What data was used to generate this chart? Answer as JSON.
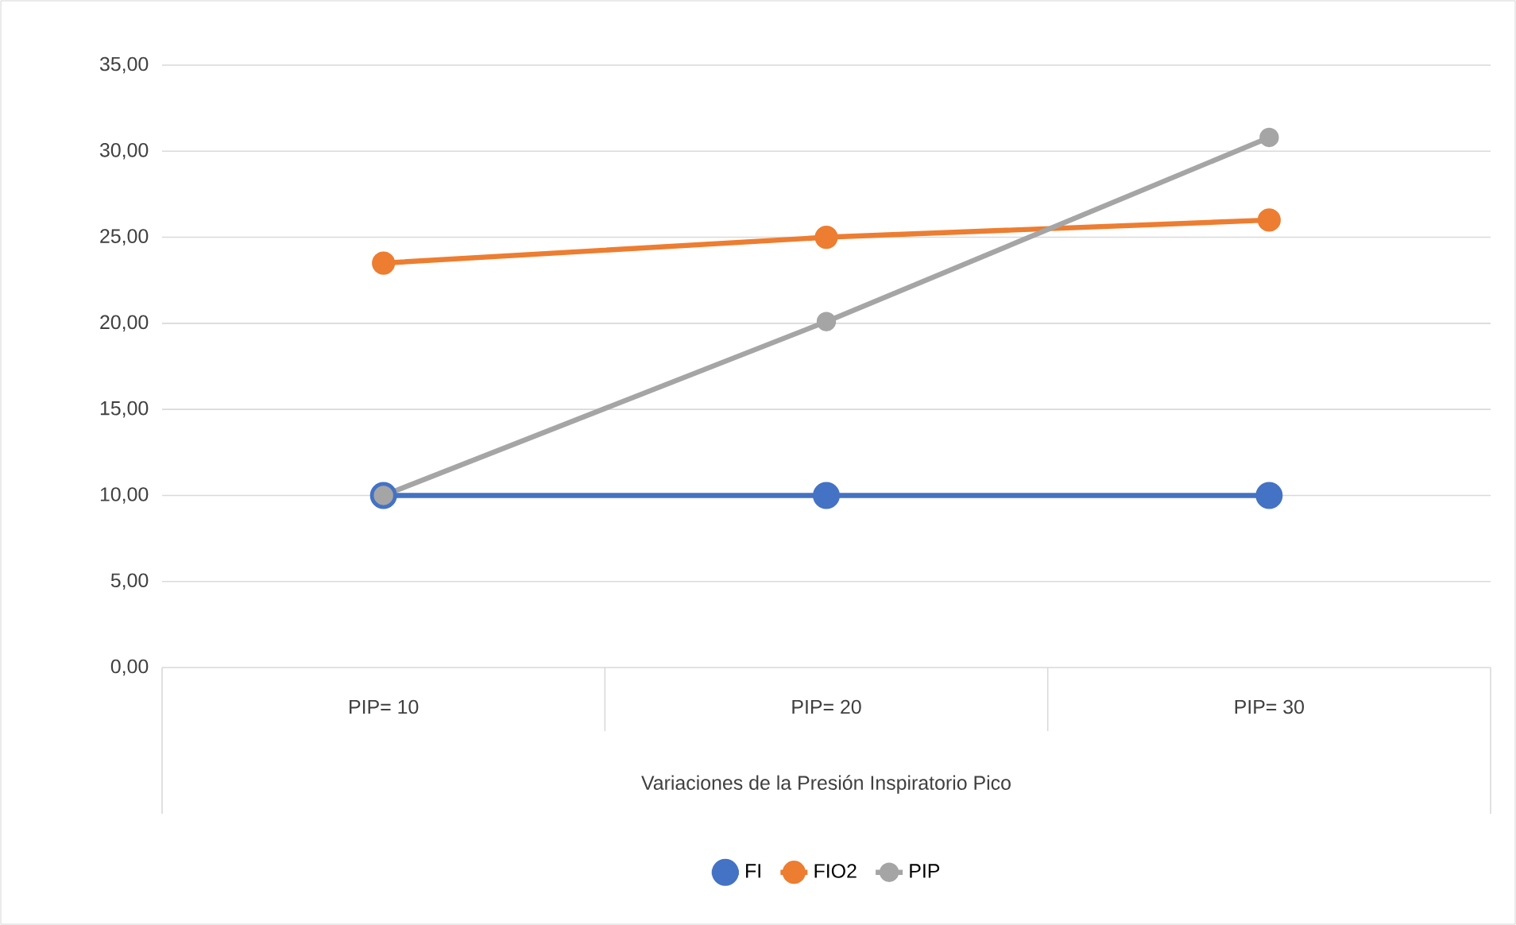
{
  "chart_data": {
    "type": "line",
    "xlabel": "Variaciones de la Presión Inspiratorio Pico",
    "categories": [
      "PIP=  10",
      "PIP=  20",
      "PIP=  30"
    ],
    "series": [
      {
        "name": "FI",
        "color": "#4472c4",
        "values": [
          10,
          10,
          10
        ]
      },
      {
        "name": "FIO2",
        "color": "#ed7d31",
        "values": [
          23.5,
          25,
          26
        ]
      },
      {
        "name": "PIP",
        "color": "#a5a5a5",
        "values": [
          10,
          20.1,
          30.8
        ]
      }
    ],
    "ylim": [
      0,
      35
    ],
    "yticks": [
      {
        "value": 0,
        "label": "0,00"
      },
      {
        "value": 5,
        "label": "5,00"
      },
      {
        "value": 10,
        "label": "10,00"
      },
      {
        "value": 15,
        "label": "15,00"
      },
      {
        "value": 20,
        "label": "20,00"
      },
      {
        "value": 25,
        "label": "25,00"
      },
      {
        "value": 30,
        "label": "30,00"
      },
      {
        "value": 35,
        "label": "35,00"
      }
    ],
    "grid": "y",
    "legend": "bottom",
    "marker": "circle"
  }
}
